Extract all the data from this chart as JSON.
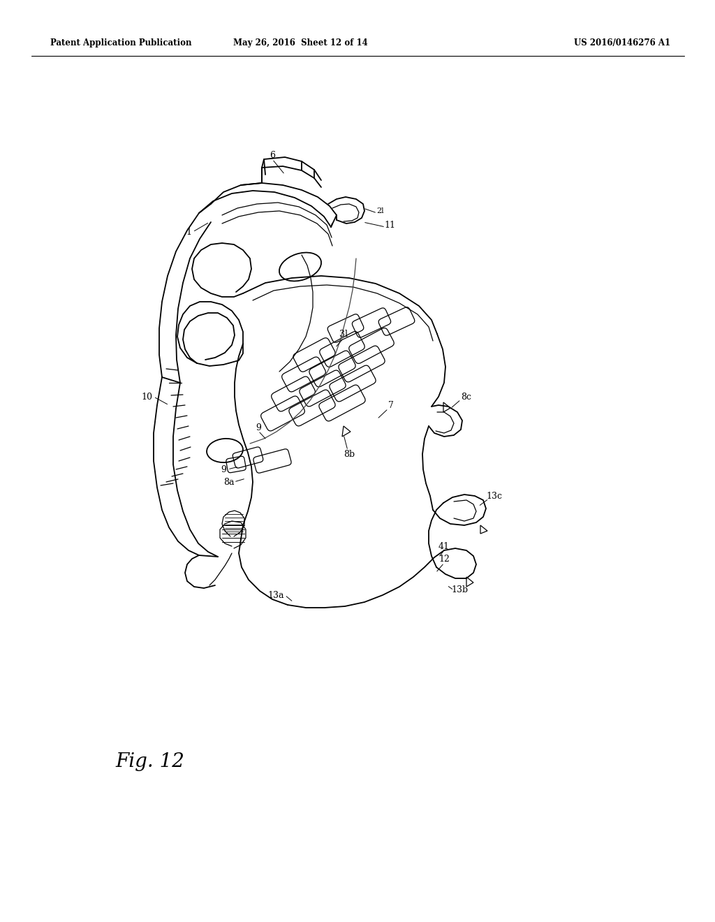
{
  "header_left": "Patent Application Publication",
  "header_mid": "May 26, 2016  Sheet 12 of 14",
  "header_right": "US 2016/0146276 A1",
  "figure_label": "Fig. 12",
  "background_color": "#ffffff",
  "line_color": "#000000",
  "fig_width": 10.24,
  "fig_height": 13.2,
  "dpi": 100
}
